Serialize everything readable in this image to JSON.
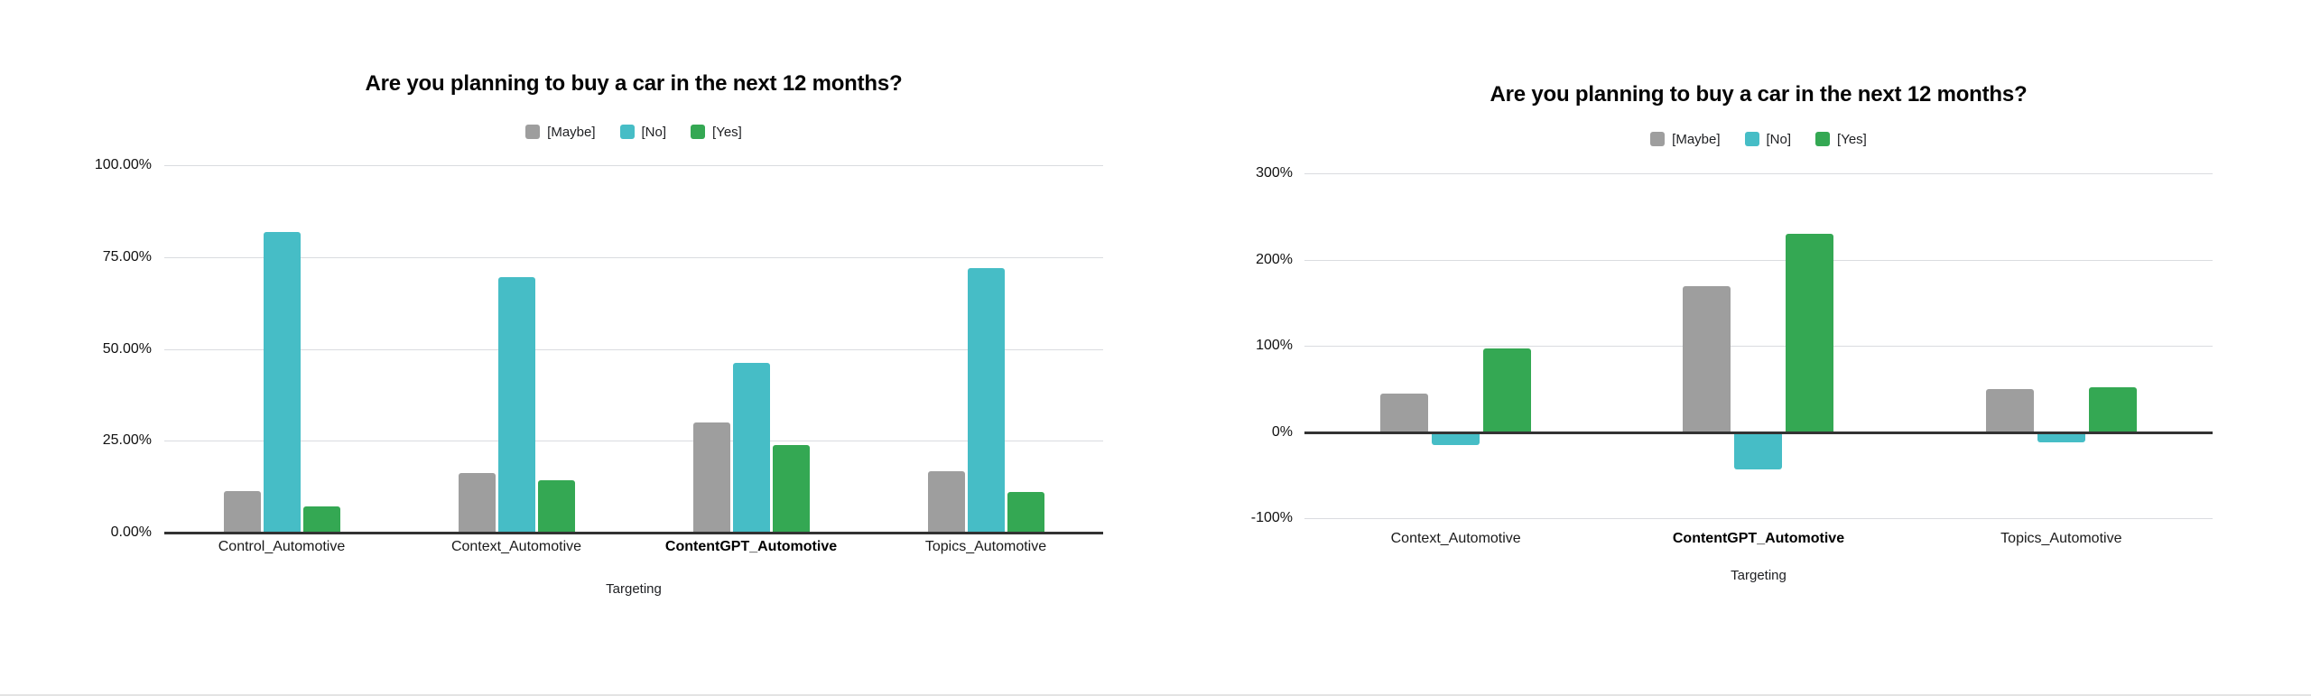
{
  "page": {
    "background": "#ffffff"
  },
  "legend_labels": [
    "[Maybe]",
    "[No]",
    "[Yes]"
  ],
  "series_colors": {
    "maybe": "#9e9e9e",
    "no": "#46bdc6",
    "yes": "#34a853"
  },
  "chart_data": [
    {
      "id": "survey-share",
      "type": "bar",
      "title": "Are you planning to buy a car in the next 12 months?",
      "xlabel": "Targeting",
      "categories": [
        "Control_Automotive",
        "Context_Automotive",
        "ContentGPT_Automotive",
        "Topics_Automotive"
      ],
      "highlighted_category": "ContentGPT_Automotive",
      "series": [
        {
          "name": "[Maybe]",
          "color": "#9e9e9e",
          "values": [
            11.2,
            16.2,
            30.0,
            16.6
          ]
        },
        {
          "name": "[No]",
          "color": "#46bdc6",
          "values": [
            81.7,
            69.6,
            46.3,
            71.9
          ]
        },
        {
          "name": "[Yes]",
          "color": "#34a853",
          "values": [
            7.2,
            14.2,
            23.9,
            11.0
          ]
        }
      ],
      "ylim": [
        0,
        100
      ],
      "y_ticks": [
        {
          "value": 100,
          "label": "100.00%"
        },
        {
          "value": 75,
          "label": "75.00%"
        },
        {
          "value": 50,
          "label": "50.00%"
        },
        {
          "value": 25,
          "label": "25.00%"
        },
        {
          "value": 0,
          "label": "0.00%"
        }
      ],
      "grid": true,
      "legend_position": "top"
    },
    {
      "id": "survey-lift",
      "type": "bar",
      "title": "Are you planning to buy a car in the next 12 months?",
      "xlabel": "Targeting",
      "categories": [
        "Context_Automotive",
        "ContentGPT_Automotive",
        "Topics_Automotive"
      ],
      "highlighted_category": "ContentGPT_Automotive",
      "series": [
        {
          "name": "[Maybe]",
          "color": "#9e9e9e",
          "values": [
            45,
            170,
            50
          ]
        },
        {
          "name": "[No]",
          "color": "#46bdc6",
          "values": [
            -15,
            -43,
            -12
          ]
        },
        {
          "name": "[Yes]",
          "color": "#34a853",
          "values": [
            97,
            230,
            52
          ]
        }
      ],
      "ylim": [
        -100,
        300
      ],
      "y_ticks": [
        {
          "value": 300,
          "label": "300%"
        },
        {
          "value": 200,
          "label": "200%"
        },
        {
          "value": 100,
          "label": "100%"
        },
        {
          "value": 0,
          "label": "0%"
        },
        {
          "value": -100,
          "label": "-100%"
        }
      ],
      "grid": true,
      "legend_position": "top"
    }
  ]
}
